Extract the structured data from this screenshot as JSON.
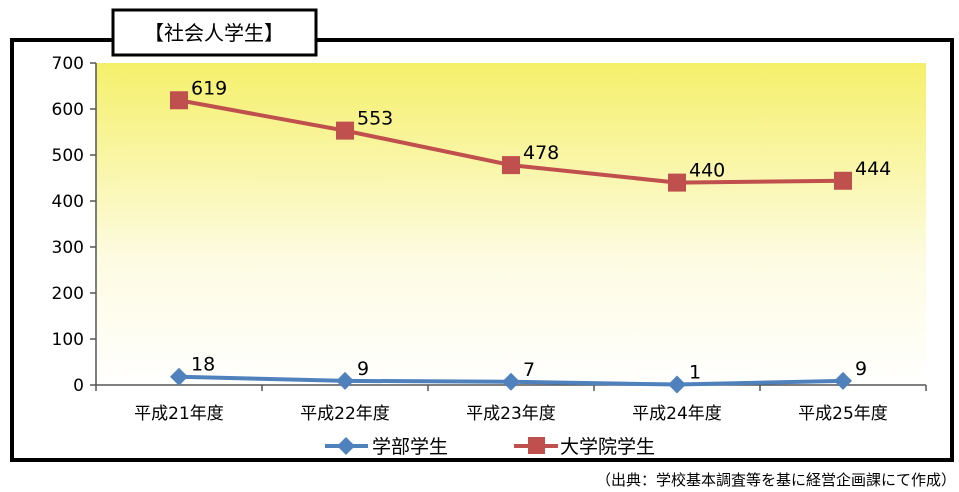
{
  "chart_data": {
    "type": "line",
    "title": "【社会人学生】",
    "categories": [
      "平成21年度",
      "平成22年度",
      "平成23年度",
      "平成24年度",
      "平成25年度"
    ],
    "series": [
      {
        "name": "学部学生",
        "values": [
          18,
          9,
          7,
          1,
          9
        ],
        "color": "#4f81bd",
        "marker": "diamond"
      },
      {
        "name": "大学院学生",
        "values": [
          619,
          553,
          478,
          440,
          444
        ],
        "color": "#c0504d",
        "marker": "square"
      }
    ],
    "ylim": [
      0,
      700
    ],
    "yticks": [
      0,
      100,
      200,
      300,
      400,
      500,
      600,
      700
    ],
    "plot_background": {
      "gradient_top": "#f5f06a",
      "gradient_bottom": "#ffffff"
    },
    "legend_position": "bottom"
  },
  "source_note": "（出典：学校基本調査等を基に経営企画課にて作成）"
}
